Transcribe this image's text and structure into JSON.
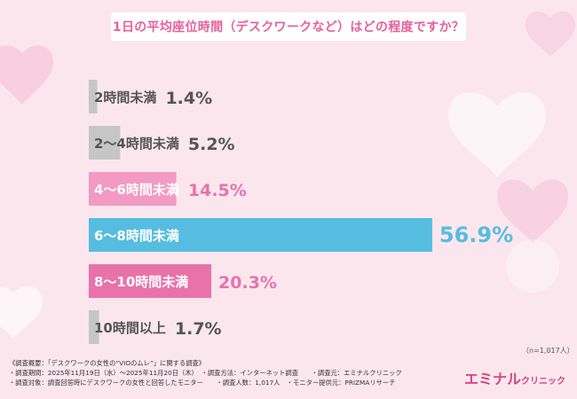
{
  "title": "1日の平均座位時間（デスクワークなど）はどの程度ですか？",
  "chart_data": {
    "type": "bar",
    "orientation": "horizontal",
    "categories": [
      "2時間未満",
      "2〜4時間未満",
      "4〜6時間未満",
      "6〜8時間未満",
      "8〜10時間未満",
      "10時間以上"
    ],
    "values": [
      1.4,
      5.2,
      14.5,
      56.9,
      20.3,
      1.7
    ],
    "value_labels": [
      "1.4%",
      "5.2%",
      "14.5%",
      "56.9%",
      "20.3%",
      "1.7%"
    ],
    "colors": [
      "#c6c6c6",
      "#c6c6c6",
      "#f29ac3",
      "#56bde0",
      "#e872a9",
      "#c6c6c6"
    ],
    "label_colors": [
      "#555555",
      "#555555",
      "#ffffff",
      "#ffffff",
      "#ffffff",
      "#555555"
    ],
    "value_colors": [
      "#555555",
      "#555555",
      "#e872a9",
      "#56bde0",
      "#e872a9",
      "#555555"
    ],
    "unit": "%",
    "xlim": [
      0,
      60
    ],
    "grid": false,
    "legend": "none"
  },
  "sample_note": "（n=1,017人）",
  "footer": {
    "line1": "《調査概要：「デスクワークの女性の“VIOのムレ”」に関する調査》",
    "line2": "・調査期間：2025年11月19日（水）〜2025年11月20日（木）　・調査方法：インターネット調査　　・調査元：エミナルクリニック",
    "line3": "・調査対象：調査回答時にデスクワークの女性と回答したモニター　　・調査人数：1,017人　・モニター提供元：PRIZMAリサーチ"
  },
  "brand": {
    "name": "エミナル",
    "sub": "クリニック"
  },
  "colors": {
    "background": "#fbe6ee",
    "accent": "#e8609b"
  }
}
